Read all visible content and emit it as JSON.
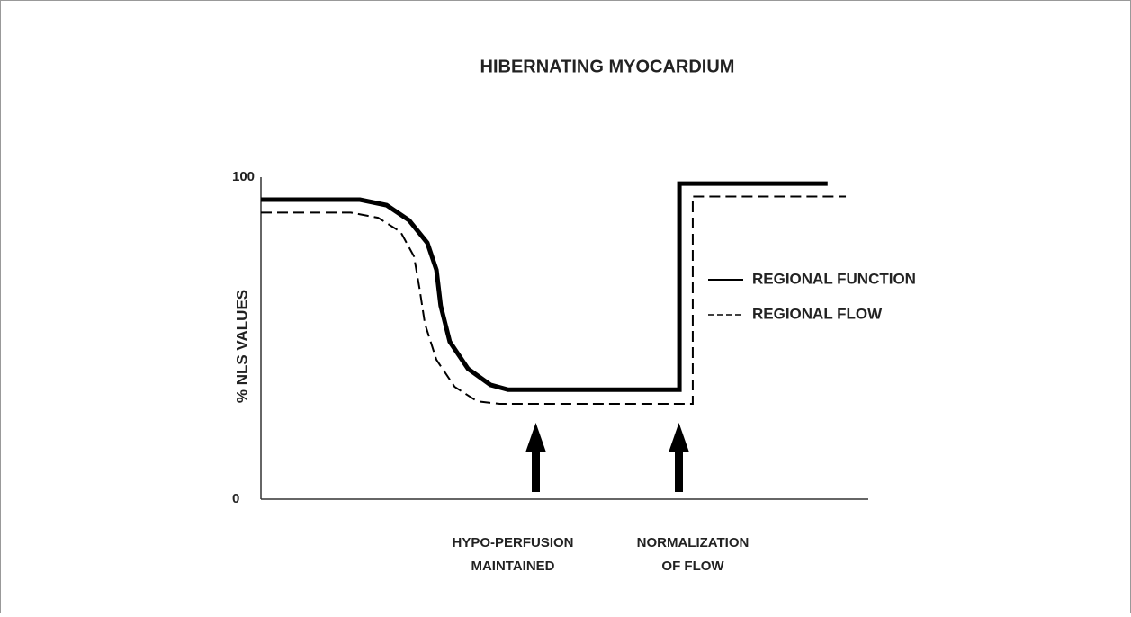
{
  "chart_data": {
    "type": "line",
    "title": "HIBERNATING MYOCARDIUM",
    "y_label": "% NLS VALUES",
    "ylim": [
      0,
      100
    ],
    "yticks": [
      0,
      100
    ],
    "xlim": [
      0,
      100
    ],
    "legend": "right",
    "series": [
      {
        "name": "REGIONAL FUNCTION",
        "color": "#000000",
        "style": "solid",
        "x": [
          0,
          16.3,
          20.7,
          24.4,
          27.4,
          28.9,
          29.6,
          31.1,
          34.1,
          37.8,
          40.7,
          68.9,
          68.9,
          93.3
        ],
        "values": [
          93,
          93,
          91.3,
          86.6,
          79.6,
          71.2,
          60.1,
          48.9,
          40.5,
          35.5,
          34,
          34,
          98,
          98
        ]
      },
      {
        "name": "REGIONAL FLOW",
        "color": "#000000",
        "style": "dashed",
        "x": [
          0,
          14.8,
          19.3,
          23,
          25.2,
          26.1,
          27,
          28.9,
          31.9,
          35.6,
          39.3,
          71.1,
          71.1,
          96.3
        ],
        "values": [
          89,
          89,
          87.4,
          83,
          75.4,
          65.6,
          54.5,
          43.3,
          34.9,
          30.4,
          29.6,
          29.6,
          94,
          94
        ]
      }
    ],
    "annotations": [
      {
        "lines": [
          "HYPO-PERFUSION",
          "MAINTAINED"
        ]
      },
      {
        "lines": [
          "NORMALIZATION",
          "OF FLOW"
        ]
      }
    ]
  }
}
